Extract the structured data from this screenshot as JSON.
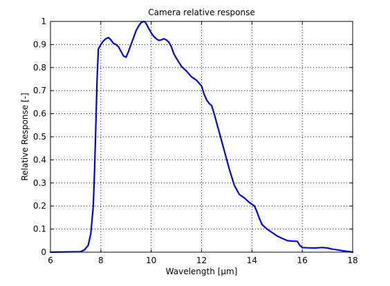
{
  "chart_data": {
    "type": "line",
    "title": "Camera relative response",
    "xlabel": "Wavelength [μm]",
    "ylabel": "Relative Response [-]",
    "xlim": [
      6,
      18
    ],
    "ylim": [
      0,
      1
    ],
    "xticks": [
      6,
      8,
      10,
      12,
      14,
      16,
      18
    ],
    "yticks": [
      0,
      0.1,
      0.2,
      0.3,
      0.4,
      0.5,
      0.6,
      0.7,
      0.8,
      0.9,
      1
    ],
    "xtick_labels": [
      "6",
      "8",
      "10",
      "12",
      "14",
      "16",
      "18"
    ],
    "ytick_labels": [
      "0",
      "0.1",
      "0.2",
      "0.3",
      "0.4",
      "0.5",
      "0.6",
      "0.7",
      "0.8",
      "0.9",
      "1"
    ],
    "grid": true,
    "line_color": "#0000ee",
    "series": [
      {
        "x": [
          6.0,
          7.2,
          7.35,
          7.5,
          7.6,
          7.7,
          7.75,
          7.8,
          7.85,
          7.9,
          8.0,
          8.1,
          8.2,
          8.3,
          8.4,
          8.5,
          8.6,
          8.7,
          8.8,
          8.9,
          9.0,
          9.1,
          9.2,
          9.3,
          9.4,
          9.5,
          9.6,
          9.7,
          9.75,
          9.8,
          9.9,
          10.0,
          10.1,
          10.2,
          10.3,
          10.4,
          10.5,
          10.6,
          10.7,
          10.8,
          10.9,
          11.0,
          11.2,
          11.4,
          11.6,
          11.8,
          12.0,
          12.1,
          12.2,
          12.3,
          12.4,
          12.5,
          12.7,
          12.9,
          13.1,
          13.3,
          13.5,
          13.7,
          13.9,
          14.1,
          14.2,
          14.3,
          14.4,
          14.5,
          14.6,
          14.8,
          15.0,
          15.2,
          15.4,
          15.6,
          15.8,
          15.9,
          16.0,
          16.2,
          16.5,
          16.8,
          17.0,
          17.2,
          17.4,
          17.6,
          17.8,
          18.0
        ],
        "y": [
          0.0,
          0.002,
          0.01,
          0.03,
          0.08,
          0.2,
          0.35,
          0.55,
          0.75,
          0.88,
          0.9,
          0.915,
          0.925,
          0.93,
          0.92,
          0.905,
          0.9,
          0.89,
          0.87,
          0.85,
          0.845,
          0.87,
          0.9,
          0.93,
          0.96,
          0.98,
          0.995,
          1.0,
          0.998,
          0.99,
          0.97,
          0.95,
          0.935,
          0.925,
          0.918,
          0.92,
          0.925,
          0.92,
          0.91,
          0.89,
          0.86,
          0.84,
          0.805,
          0.785,
          0.76,
          0.745,
          0.72,
          0.685,
          0.66,
          0.645,
          0.635,
          0.6,
          0.52,
          0.44,
          0.36,
          0.29,
          0.25,
          0.235,
          0.215,
          0.2,
          0.175,
          0.145,
          0.12,
          0.11,
          0.1,
          0.085,
          0.07,
          0.06,
          0.05,
          0.048,
          0.047,
          0.03,
          0.02,
          0.019,
          0.018,
          0.02,
          0.018,
          0.013,
          0.01,
          0.006,
          0.003,
          0.0
        ]
      }
    ]
  }
}
